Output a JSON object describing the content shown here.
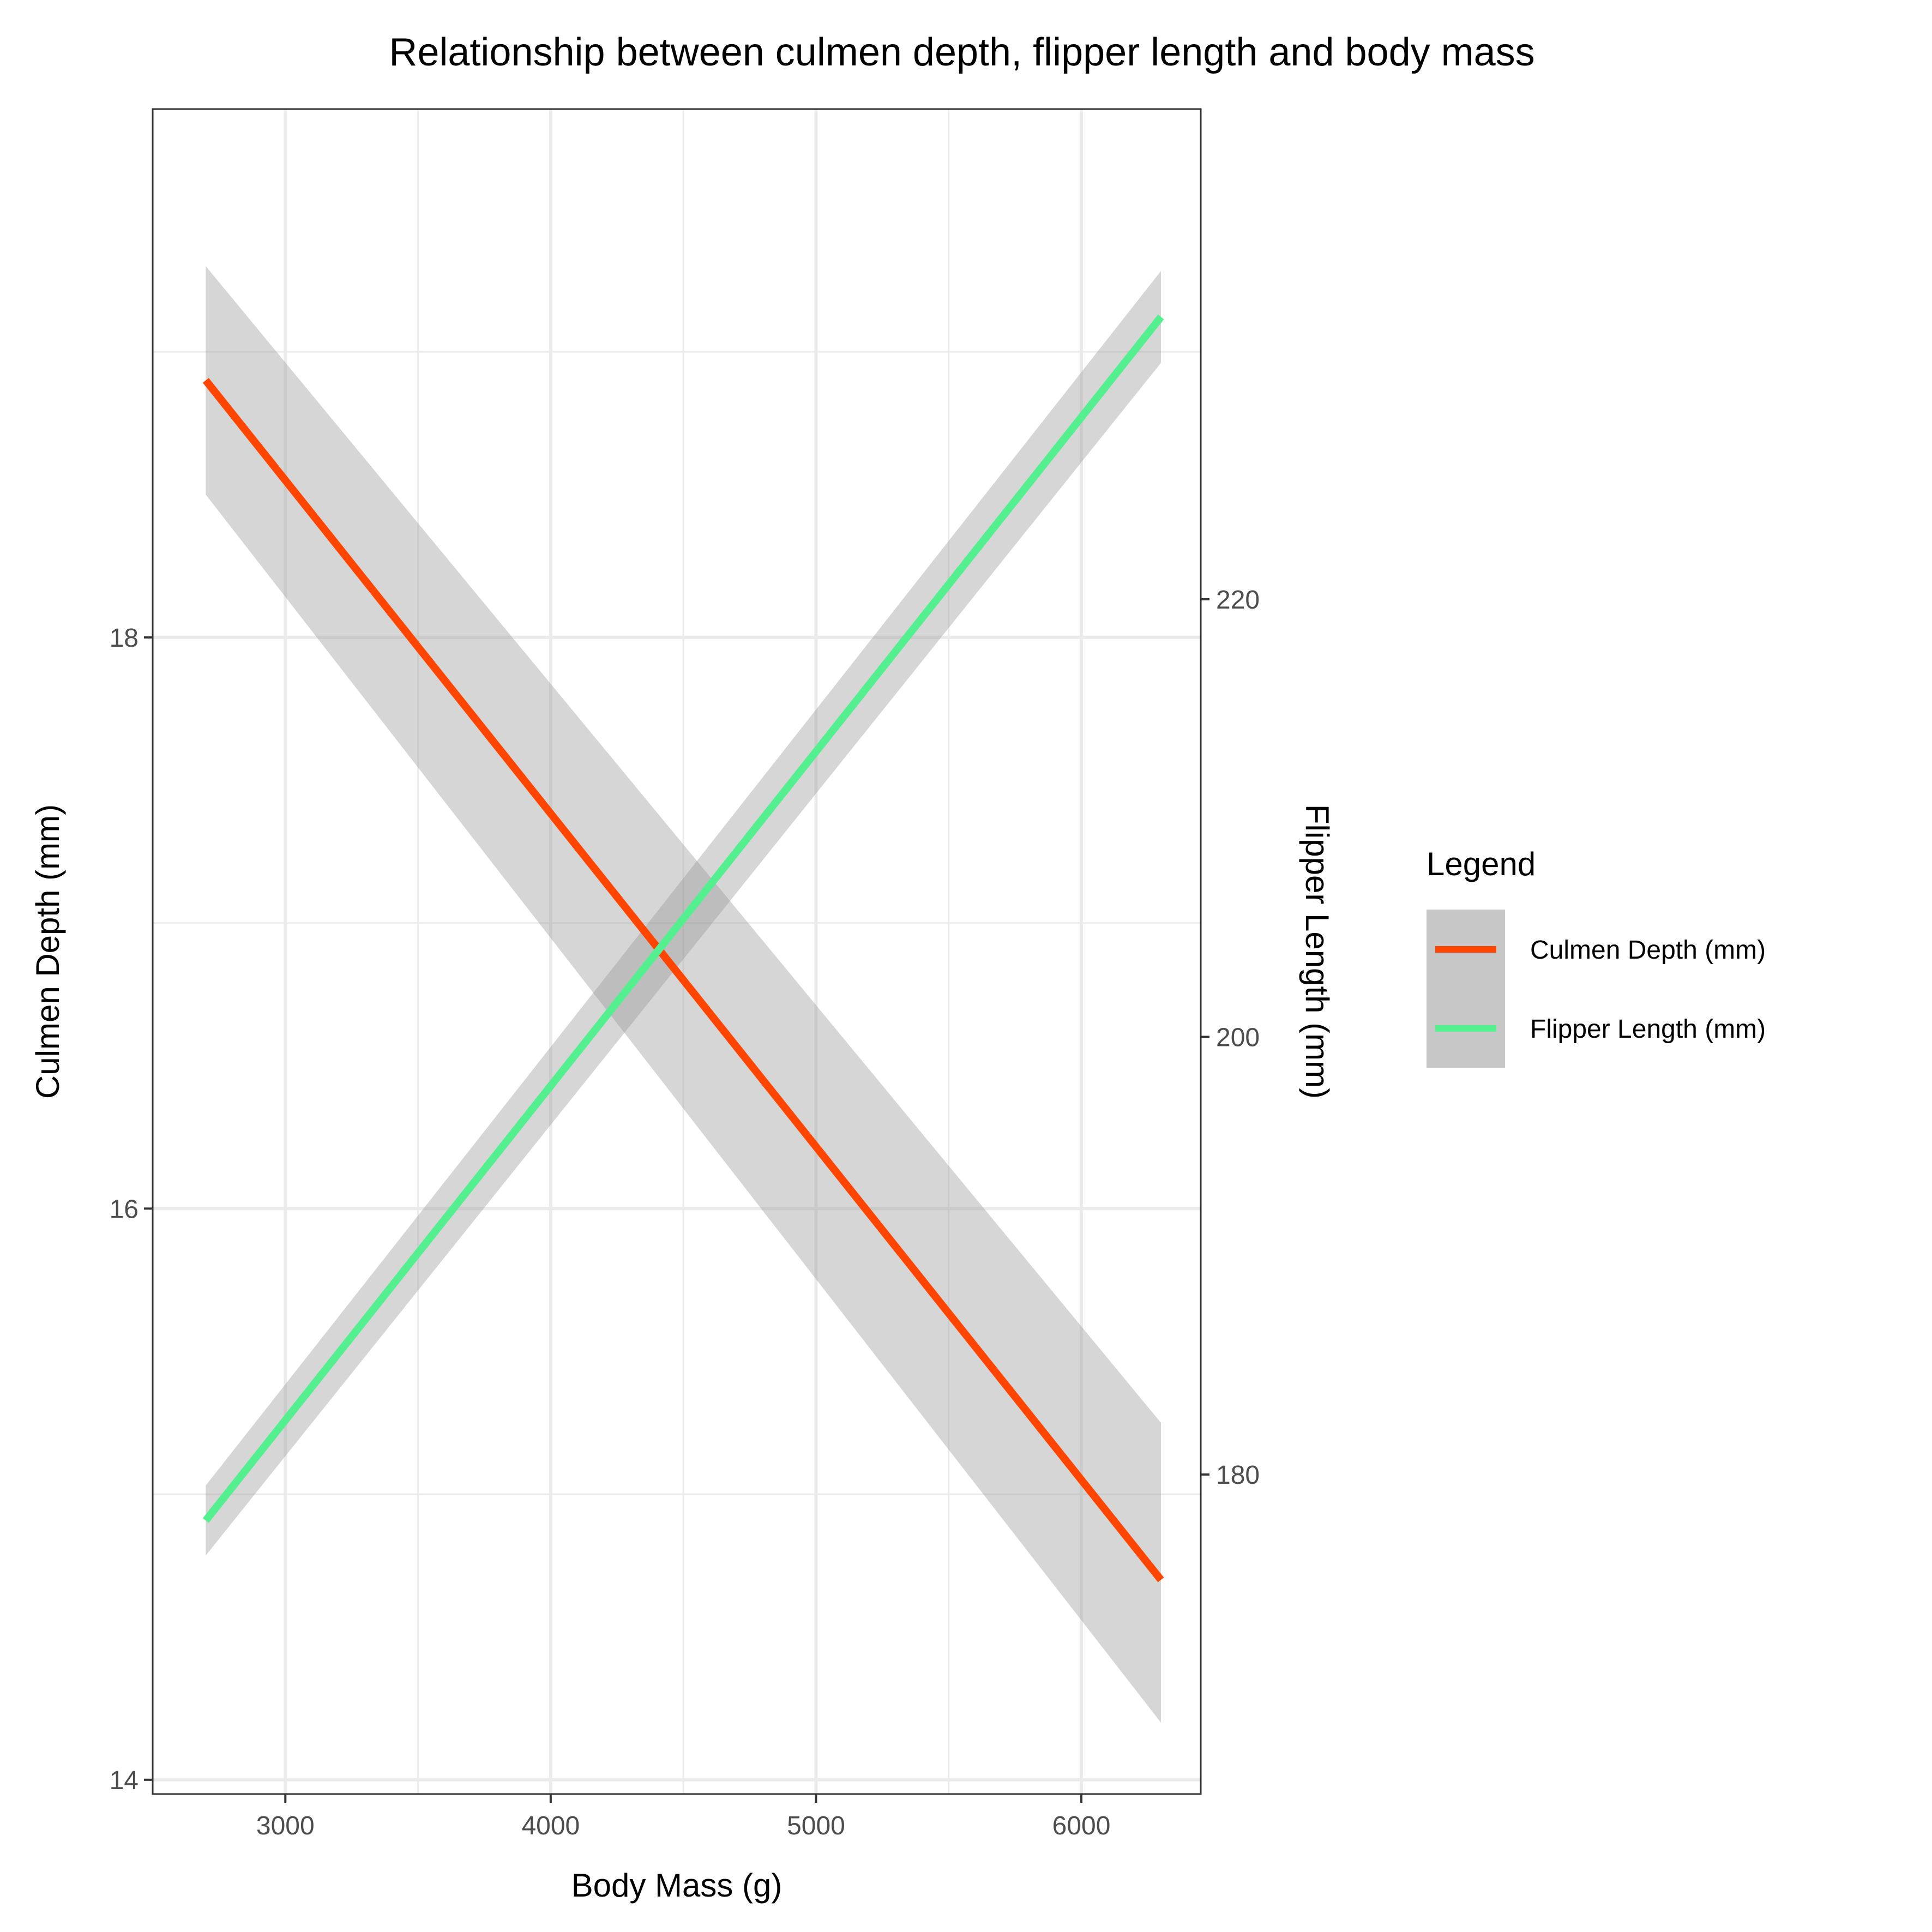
{
  "chart_data": {
    "type": "line",
    "title": "Relationship between culmen depth, flipper length and body mass",
    "xlabel": "Body Mass (g)",
    "ylabel": "Culmen Depth (mm)",
    "y2label": "Flipper Length (mm)",
    "xlim": [
      2500,
      6450
    ],
    "ylim": [
      13.95,
      19.85
    ],
    "y2lim": [
      165.4,
      242.4
    ],
    "xticks": [
      3000,
      4000,
      5000,
      6000
    ],
    "xticks_minor": [
      3500,
      4500,
      5500
    ],
    "yticks": [
      14,
      16,
      18
    ],
    "yticks_minor": [
      15,
      17,
      19
    ],
    "y2ticks": [
      180,
      200,
      220
    ],
    "grid": true,
    "legend_title": "Legend",
    "legend_position": "right",
    "series": [
      {
        "name": "Culmen Depth (mm)",
        "axis": "left",
        "color": "#FF4500",
        "x": [
          2700,
          6300
        ],
        "y": [
          18.9,
          14.7
        ],
        "ci_lower": [
          18.5,
          14.2
        ],
        "ci_upper": [
          19.3,
          15.25
        ]
      },
      {
        "name": "Flipper Length (mm)",
        "axis": "right",
        "color": "#54F08F",
        "x": [
          2700,
          6300
        ],
        "y": [
          177.9,
          232.9
        ],
        "ci_lower": [
          176.3,
          230.8
        ],
        "ci_upper": [
          179.5,
          235.0
        ]
      }
    ],
    "band_color": "#999999"
  }
}
